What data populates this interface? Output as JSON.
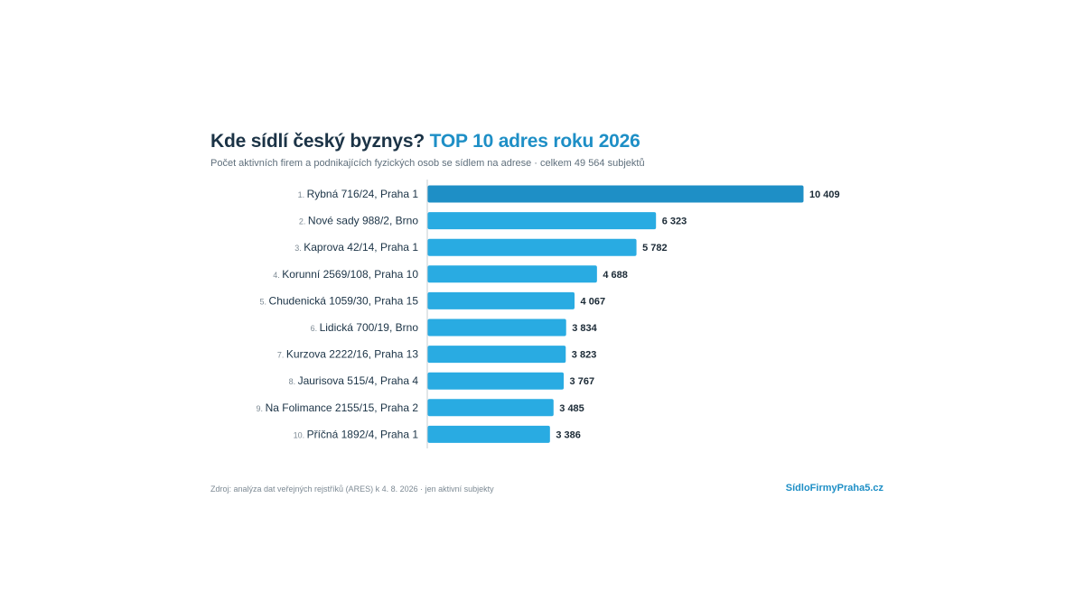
{
  "header": {
    "title_main": "Kde sídlí český byznys?",
    "title_accent": "TOP 10 adres roku 2026",
    "subtitle": "Počet aktivních firem a podnikajících fyzických osob se sídlem na adrese · celkem 49 564 subjektů"
  },
  "footer": {
    "source": "Zdroj: analýza dat veřejných rejstříků (ARES) k 4. 8. 2026 · jen aktivní subjekty",
    "brand": "SídloFirmyPraha5.cz"
  },
  "colors": {
    "bar": "#29abe2",
    "bar_top": "#1e8fc6",
    "rank": "#7d8a94",
    "label": "#1b3346",
    "value": "#1b2a36",
    "axis": "#c4ccd2"
  },
  "chart_data": {
    "type": "bar",
    "orientation": "horizontal",
    "categories": [
      "Rybná 716/24, Praha 1",
      "Nové sady 988/2, Brno",
      "Kaprova 42/14, Praha 1",
      "Korunní 2569/108, Praha 10",
      "Chudenická 1059/30, Praha 15",
      "Lidická 700/19, Brno",
      "Kurzova 2222/16, Praha 13",
      "Jaurisova 515/4, Praha 4",
      "Na Folimance 2155/15, Praha 2",
      "Příčná 1892/4, Praha 1"
    ],
    "ranks": [
      "1.",
      "2.",
      "3.",
      "4.",
      "5.",
      "6.",
      "7.",
      "8.",
      "9.",
      "10."
    ],
    "values": [
      10409,
      6323,
      5782,
      4688,
      4067,
      3834,
      3823,
      3767,
      3485,
      3386
    ],
    "value_labels": [
      "10 409",
      "6 323",
      "5 782",
      "4 688",
      "4 067",
      "3 834",
      "3 823",
      "3 767",
      "3 485",
      "3 386"
    ],
    "xlim": [
      0,
      10409
    ],
    "grid": false,
    "legend": "none"
  }
}
